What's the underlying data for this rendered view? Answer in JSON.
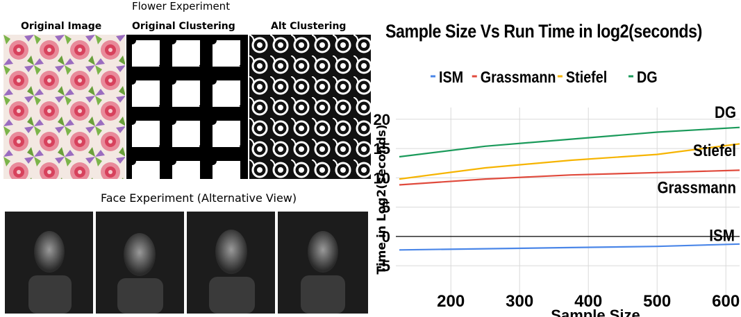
{
  "left": {
    "flower_title": "Flower Experiment",
    "captions": [
      "Original Image",
      "Original Clustering",
      "Alt Clustering"
    ],
    "face_title": "Face Experiment (Alternative View)"
  },
  "chart_data": {
    "type": "line",
    "title": "Sample Size Vs Run Time in log2(seconds)",
    "xlabel": "Sample Size",
    "ylabel": "Time in Log2(seconds)",
    "xlim": [
      120,
      620
    ],
    "ylim": [
      -7,
      22
    ],
    "xticks": [
      "200",
      "300",
      "400",
      "500",
      "600"
    ],
    "yticks": [
      "20",
      "15",
      "10",
      "5",
      "0",
      "-5"
    ],
    "legend_position": "top",
    "grid": true,
    "series": [
      {
        "name": "ISM",
        "color": "#4a86e8",
        "x": [
          125,
          250,
          375,
          500,
          620
        ],
        "y": [
          -2.3,
          -2.1,
          -1.9,
          -1.7,
          -1.3
        ]
      },
      {
        "name": "Grassmann",
        "color": "#e04a3c",
        "x": [
          125,
          250,
          375,
          500,
          620
        ],
        "y": [
          8.8,
          9.8,
          10.5,
          10.9,
          11.3
        ]
      },
      {
        "name": "Stiefel",
        "color": "#f6b400",
        "x": [
          125,
          250,
          375,
          500,
          620
        ],
        "y": [
          9.8,
          11.7,
          13.0,
          14.0,
          15.8
        ]
      },
      {
        "name": "DG",
        "color": "#1a9a5a",
        "x": [
          125,
          250,
          375,
          500,
          620
        ],
        "y": [
          13.6,
          15.4,
          16.6,
          17.8,
          18.6
        ]
      }
    ],
    "end_labels": [
      "DG",
      "Stiefel",
      "Grassmann",
      "ISM"
    ]
  }
}
